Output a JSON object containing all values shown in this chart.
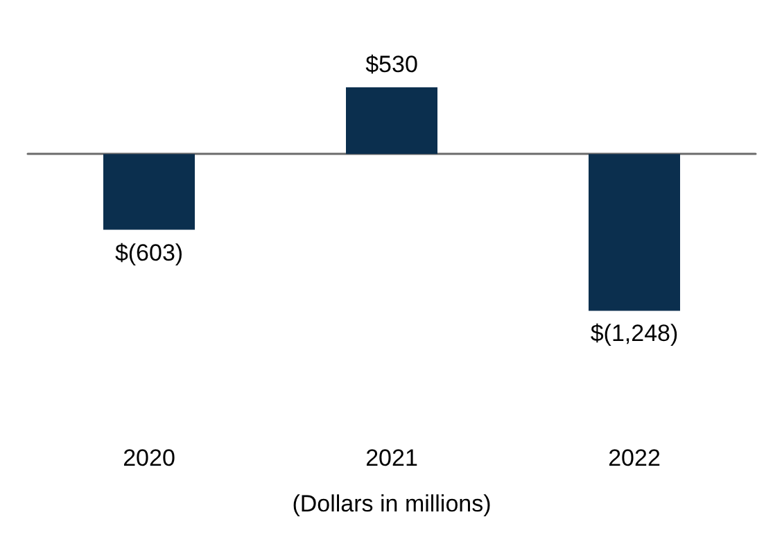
{
  "chart_data": {
    "type": "bar",
    "xlabel": "(Dollars in millions)",
    "categories": [
      "2020",
      "2021",
      "2022"
    ],
    "values": [
      -603,
      530,
      -1248
    ],
    "value_labels": [
      "$(603)",
      "$530",
      "$(1,248)"
    ],
    "color": "#0b2f4e"
  }
}
